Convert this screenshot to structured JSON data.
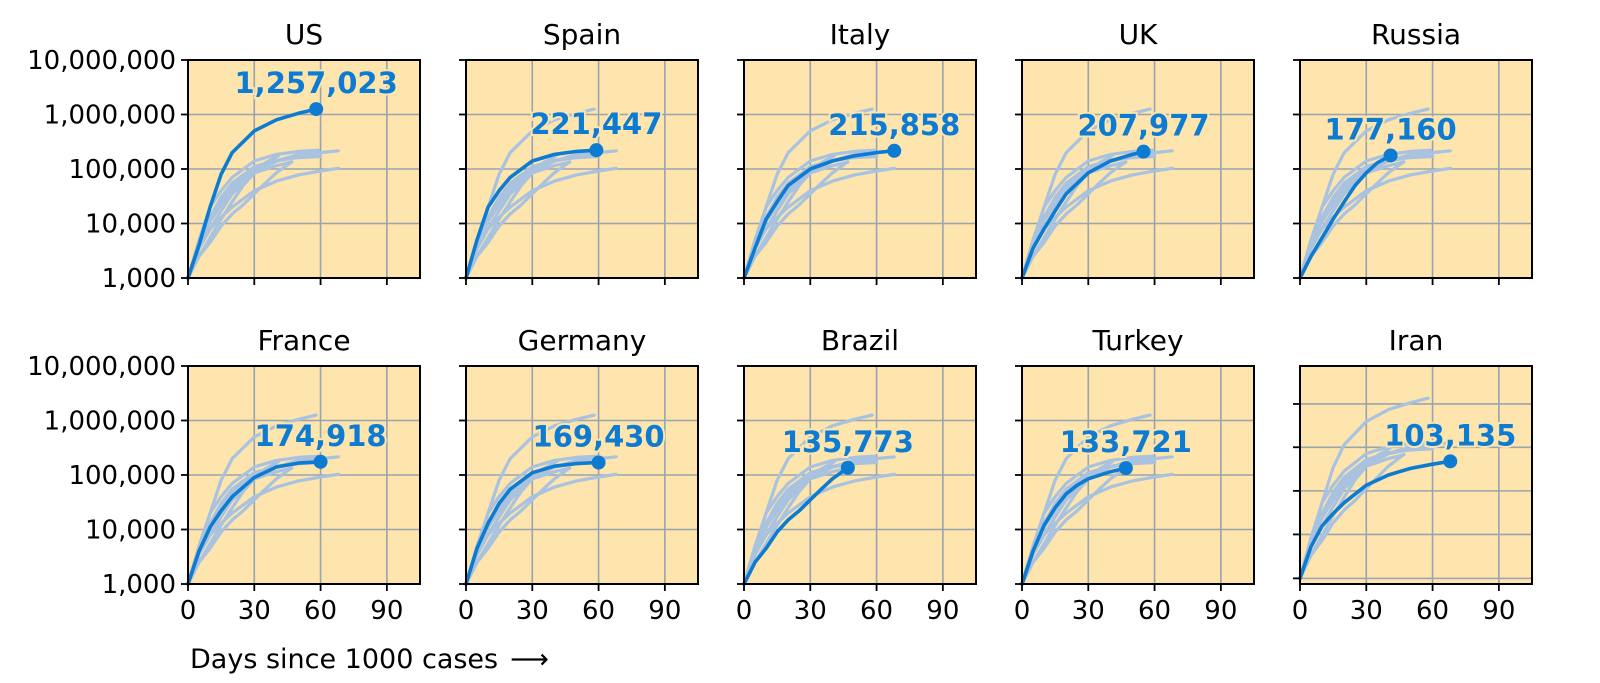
{
  "colors": {
    "highlight": "#0d7bd1",
    "background_series": "#a8c2df",
    "panel_bg": "#fde5ad",
    "grid": "#9aa3b0"
  },
  "chart_data": {
    "type": "line",
    "xlabel": "Days since 1000 cases",
    "x_ticks": [
      0,
      30,
      60,
      90
    ],
    "xlim": [
      0,
      105
    ],
    "y_scale": "log",
    "ylim": [
      1000,
      10000000
    ],
    "y_ticks": [
      1000,
      10000,
      100000,
      1000000,
      10000000
    ],
    "y_tick_labels": [
      "1,000",
      "10,000",
      "100,000",
      "1,000,000",
      "10,000,000"
    ],
    "grid": true,
    "series": [
      {
        "name": "US",
        "label": "1,257,023",
        "last_value": 1257023,
        "x": [
          0,
          5,
          10,
          15,
          20,
          30,
          40,
          50,
          58
        ],
        "y": [
          1000,
          4000,
          20000,
          80000,
          200000,
          500000,
          800000,
          1050000,
          1257023
        ]
      },
      {
        "name": "Spain",
        "label": "221,447",
        "last_value": 221447,
        "x": [
          0,
          5,
          10,
          15,
          20,
          30,
          40,
          50,
          59
        ],
        "y": [
          1000,
          5000,
          20000,
          40000,
          70000,
          140000,
          185000,
          210000,
          221447
        ]
      },
      {
        "name": "Italy",
        "label": "215,858",
        "last_value": 215858,
        "x": [
          0,
          5,
          10,
          15,
          20,
          30,
          40,
          50,
          60,
          68
        ],
        "y": [
          1000,
          3500,
          12000,
          25000,
          50000,
          100000,
          140000,
          175000,
          200000,
          215858
        ]
      },
      {
        "name": "UK",
        "label": "207,977",
        "last_value": 207977,
        "x": [
          0,
          5,
          10,
          15,
          20,
          30,
          40,
          50,
          55
        ],
        "y": [
          1000,
          3500,
          8000,
          17000,
          35000,
          85000,
          140000,
          185000,
          207977
        ]
      },
      {
        "name": "Russia",
        "label": "177,160",
        "last_value": 177160,
        "x": [
          0,
          5,
          10,
          15,
          20,
          25,
          30,
          35,
          41
        ],
        "y": [
          1000,
          2500,
          5500,
          12000,
          25000,
          50000,
          85000,
          130000,
          177160
        ]
      },
      {
        "name": "France",
        "label": "174,918",
        "last_value": 174918,
        "x": [
          0,
          5,
          10,
          15,
          20,
          30,
          40,
          50,
          60
        ],
        "y": [
          1000,
          4000,
          11000,
          22000,
          40000,
          90000,
          140000,
          165000,
          174918
        ]
      },
      {
        "name": "Germany",
        "label": "169,430",
        "last_value": 169430,
        "x": [
          0,
          5,
          10,
          15,
          20,
          30,
          40,
          50,
          60
        ],
        "y": [
          1000,
          4500,
          13000,
          30000,
          55000,
          110000,
          145000,
          162000,
          169430
        ]
      },
      {
        "name": "Brazil",
        "label": "135,773",
        "last_value": 135773,
        "x": [
          0,
          5,
          10,
          15,
          20,
          25,
          30,
          35,
          40,
          47
        ],
        "y": [
          1000,
          2500,
          4500,
          9000,
          15000,
          22000,
          35000,
          55000,
          85000,
          135773
        ]
      },
      {
        "name": "Turkey",
        "label": "133,721",
        "last_value": 133721,
        "x": [
          0,
          5,
          10,
          15,
          20,
          25,
          30,
          40,
          47
        ],
        "y": [
          1000,
          4000,
          12000,
          25000,
          45000,
          65000,
          85000,
          115000,
          133721
        ]
      },
      {
        "name": "Iran",
        "label": "103,135",
        "last_value": 103135,
        "x": [
          0,
          5,
          10,
          15,
          20,
          30,
          40,
          50,
          60,
          68
        ],
        "y": [
          1000,
          3500,
          8000,
          13000,
          20000,
          40000,
          60000,
          78000,
          92000,
          103135
        ]
      }
    ]
  }
}
